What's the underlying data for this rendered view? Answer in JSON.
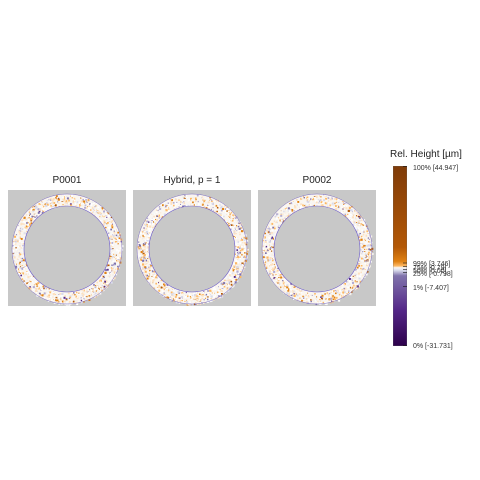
{
  "chart_data": {
    "type": "heatmap",
    "panels": [
      {
        "title": "P0001"
      },
      {
        "title": "Hybrid, p = 1"
      },
      {
        "title": "P0002"
      }
    ],
    "colorbar": {
      "title": "Rel. Height [µm]",
      "stops": [
        {
          "label": "100% [44.947]",
          "value": 44.947
        },
        {
          "label": "99% [3.746]",
          "value": 3.746
        },
        {
          "label": "75% [0.79]",
          "value": 0.79
        },
        {
          "label": "50% [0.00]",
          "value": 0.0
        },
        {
          "label": "25% [-0.798]",
          "value": -0.798
        },
        {
          "label": "1% [-7.407]",
          "value": -7.407
        },
        {
          "label": "0% [-31.731]",
          "value": -31.731
        }
      ],
      "range": [
        -31.731,
        44.947
      ],
      "colors": {
        "high": "#7f3b08",
        "mid_high": "#e08214",
        "zero": "#f7f7f7",
        "mid_low": "#8073ac",
        "low": "#2d004b"
      }
    },
    "background_color": "#c8c8c8"
  }
}
